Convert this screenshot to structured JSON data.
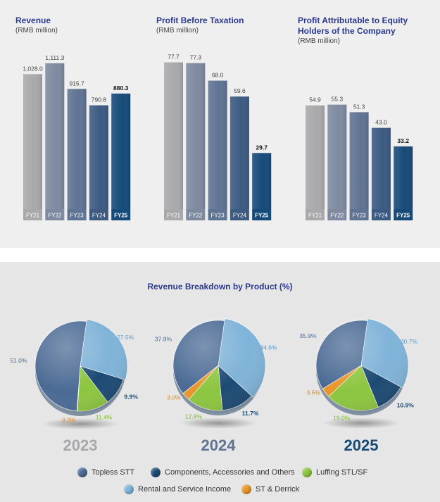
{
  "colors": {
    "FY21": "#a9a9ab",
    "FY22": "#7e8aa0",
    "FY23": "#5f7393",
    "FY24": "#3c5a82",
    "FY25": "#164a78",
    "topless": "#4a6a94",
    "components": "#1c4a73",
    "luffing": "#8cc63f",
    "rental": "#7fb3d8",
    "st": "#e8962a"
  },
  "chart_data": [
    {
      "type": "bar",
      "title": "Revenue",
      "subtitle": "(RMB million)",
      "categories": [
        "FY21",
        "FY22",
        "FY23",
        "FY24",
        "FY25"
      ],
      "values": [
        1028.0,
        1111.3,
        915.7,
        790.8,
        880.3
      ],
      "labels": [
        "1,028.0",
        "1,111.3",
        "915.7",
        "790.8",
        "880.3"
      ],
      "ylim": [
        0,
        1180
      ]
    },
    {
      "type": "bar",
      "title": "Profit Before Taxation",
      "subtitle": "(RMB million)",
      "categories": [
        "FY21",
        "FY22",
        "FY23",
        "FY24",
        "FY25"
      ],
      "values": [
        77.7,
        77.3,
        68.0,
        59.6,
        29.7
      ],
      "labels": [
        "77.7",
        "77.3",
        "68.0",
        "59.6",
        "29.7"
      ],
      "ylim": [
        0,
        82
      ]
    },
    {
      "type": "bar",
      "title": "Profit Attributable to Equity Holders of the Company",
      "subtitle": "(RMB million)",
      "categories": [
        "FY21",
        "FY22",
        "FY23",
        "FY24",
        "FY25"
      ],
      "values": [
        54.9,
        55.3,
        51.3,
        43.0,
        33.2
      ],
      "labels": [
        "54.9",
        "55.3",
        "51.3",
        "43.0",
        "33.2"
      ],
      "ylim": [
        0,
        82
      ]
    },
    {
      "type": "pie",
      "title": "Revenue Breakdown by Product (%)",
      "charts": [
        {
          "year": "2023",
          "values": {
            "topless": 51.0,
            "components": 9.9,
            "luffing": 11.4,
            "rental": 27.5,
            "st": 0.2
          }
        },
        {
          "year": "2024",
          "values": {
            "topless": 37.9,
            "components": 11.7,
            "luffing": 12.8,
            "rental": 34.6,
            "st": 3.0
          }
        },
        {
          "year": "2025",
          "values": {
            "topless": 35.9,
            "components": 10.9,
            "luffing": 19.0,
            "rental": 30.7,
            "st": 3.5
          }
        }
      ],
      "legend": [
        {
          "key": "topless",
          "label": "Topless STT"
        },
        {
          "key": "components",
          "label": "Components, Accessories and Others"
        },
        {
          "key": "luffing",
          "label": "Luffing STL/SF"
        },
        {
          "key": "rental",
          "label": "Rental and Service Income"
        },
        {
          "key": "st",
          "label": "ST & Derrick"
        }
      ]
    }
  ]
}
